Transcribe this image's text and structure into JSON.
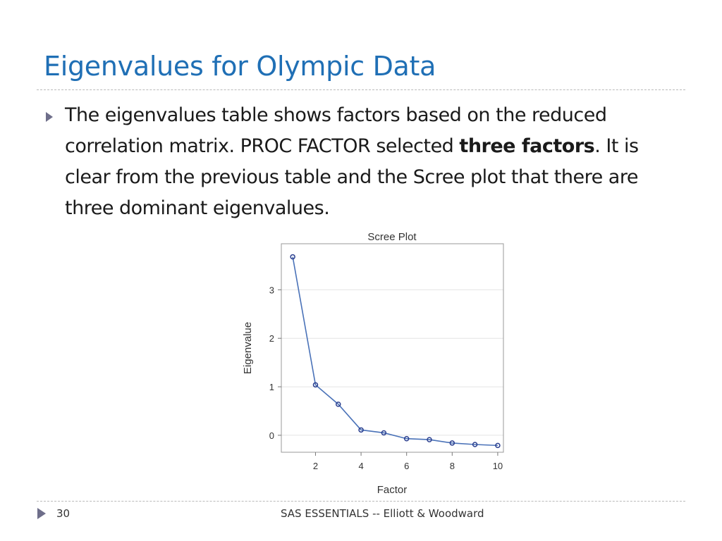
{
  "slide": {
    "title": "Eigenvalues for Olympic Data",
    "bullet_icon": "triangle-right-icon",
    "bullet": {
      "part1": "The eigenvalues table shows factors based on the reduced correlation matrix. PROC FACTOR selected ",
      "bold": "three factors",
      "part2": ". It is clear from the previous table and the Scree plot that there are three dominant eigenvalues."
    }
  },
  "chart_data": {
    "type": "line",
    "title": "Scree Plot",
    "xlabel": "Factor",
    "ylabel": "Eigenvalue",
    "x": [
      1,
      2,
      3,
      4,
      5,
      6,
      7,
      8,
      9,
      10
    ],
    "values": [
      3.68,
      1.04,
      0.64,
      0.11,
      0.05,
      -0.07,
      -0.09,
      -0.16,
      -0.19,
      -0.21
    ],
    "x_ticks": [
      2,
      4,
      6,
      8,
      10
    ],
    "y_ticks": [
      0,
      1,
      2,
      3
    ],
    "xlim": [
      0.5,
      10.25
    ],
    "ylim": [
      -0.35,
      3.95
    ],
    "grid": true,
    "line_color": "#4a72b8",
    "marker_color": "#2b3f8f"
  },
  "footer": {
    "page_number": "30",
    "text": "SAS ESSENTIALS -- Elliott & Woodward"
  },
  "colors": {
    "title": "#1f6fb5",
    "bullet": "#6e6e8a"
  }
}
